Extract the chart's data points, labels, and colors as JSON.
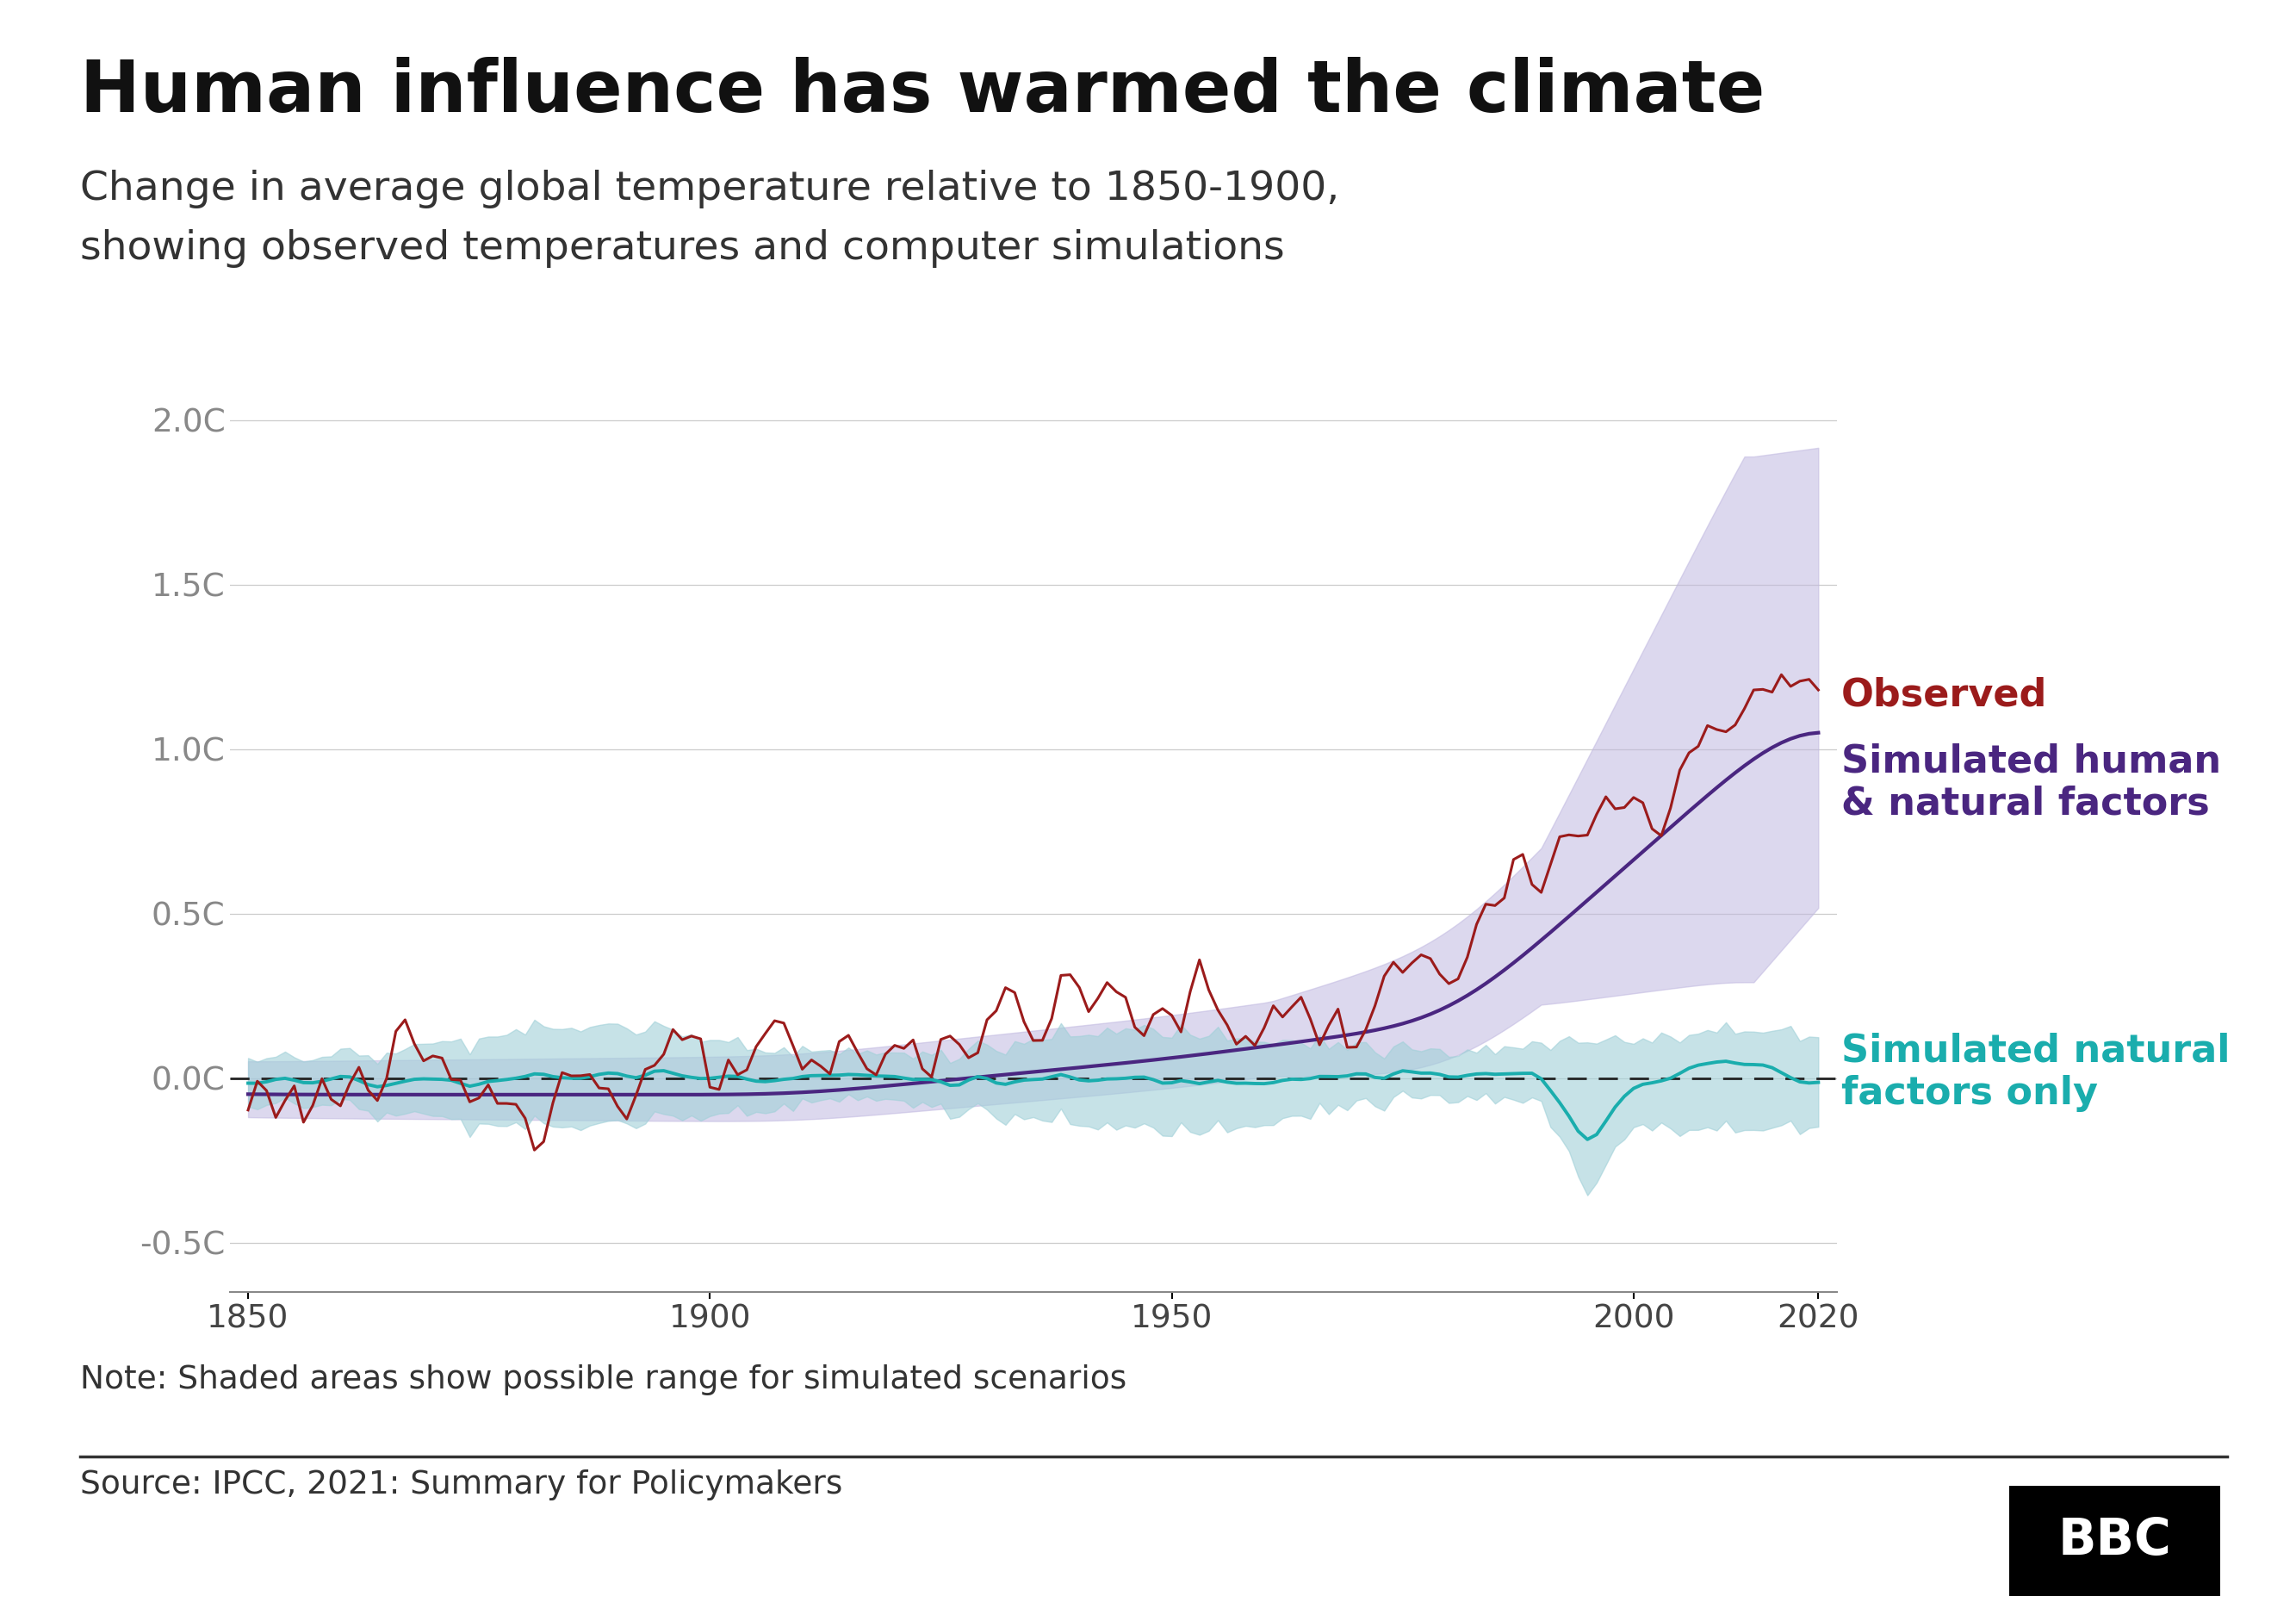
{
  "title": "Human influence has warmed the climate",
  "subtitle1": "Change in average global temperature relative to 1850-1900,",
  "subtitle2": "showing observed temperatures and computer simulations",
  "note": "Note: Shaded areas show possible range for simulated scenarios",
  "source": "Source: IPCC, 2021: Summary for Policymakers",
  "ylabel_ticks": [
    "2.0C",
    "1.5C",
    "1.0C",
    "0.5C",
    "0.0C",
    "-0.5C"
  ],
  "ytick_vals": [
    2.0,
    1.5,
    1.0,
    0.5,
    0.0,
    -0.5
  ],
  "ylim": [
    -0.65,
    2.05
  ],
  "xlim": [
    1848,
    2022
  ],
  "xtick_vals": [
    1850,
    1900,
    1950,
    2000,
    2020
  ],
  "bg_color": "#ffffff",
  "observed_color": "#9B1B1B",
  "human_natural_color": "#4A2680",
  "natural_only_color": "#1AADAD",
  "human_natural_band_color": "#C0B8E0",
  "natural_only_band_color": "#A0D0D8",
  "legend_observed": "Observed",
  "legend_human_natural": "Simulated human\n& natural factors",
  "legend_natural": "Simulated natural\nfactors only"
}
